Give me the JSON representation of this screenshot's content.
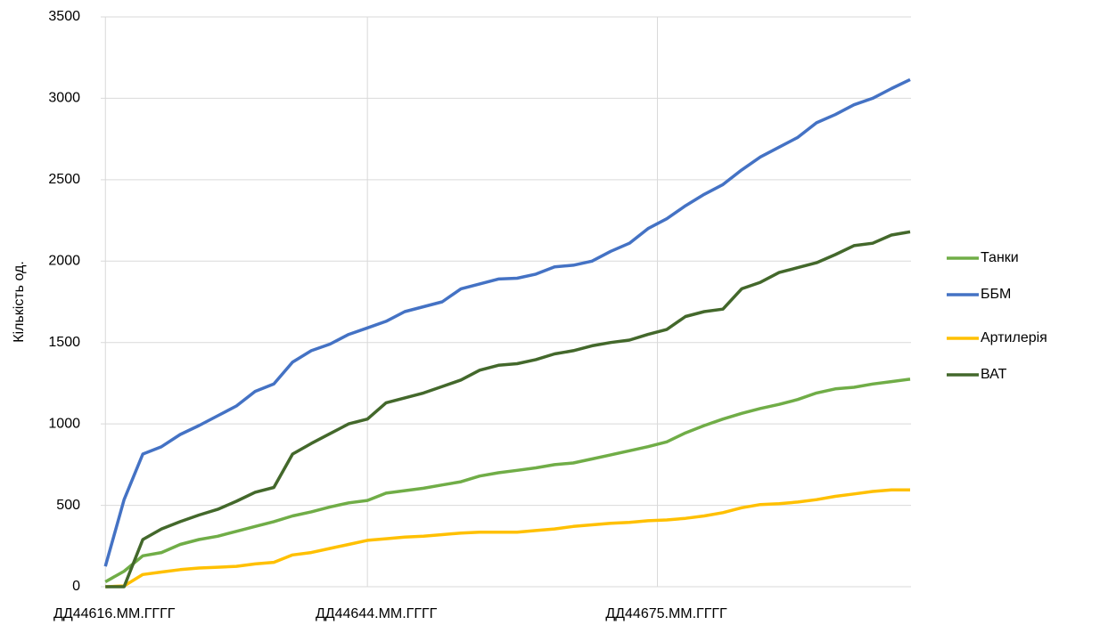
{
  "chart_data": {
    "type": "line",
    "y_label": "Кількість од.",
    "x": [
      44616,
      44618,
      44620,
      44622,
      44624,
      44626,
      44628,
      44630,
      44632,
      44634,
      44636,
      44638,
      44640,
      44642,
      44644,
      44646,
      44648,
      44650,
      44652,
      44654,
      44656,
      44658,
      44660,
      44662,
      44664,
      44666,
      44668,
      44670,
      44672,
      44674,
      44676,
      44678,
      44680,
      44682,
      44684,
      44686,
      44688,
      44690,
      44692,
      44694,
      44696,
      44698,
      44700,
      44702
    ],
    "series": [
      {
        "name": "Танки",
        "color": "#70ad47",
        "values": [
          30,
          95,
          190,
          210,
          260,
          290,
          310,
          340,
          370,
          400,
          435,
          460,
          490,
          515,
          530,
          575,
          590,
          605,
          625,
          645,
          680,
          700,
          715,
          730,
          750,
          760,
          785,
          810,
          835,
          860,
          890,
          945,
          990,
          1030,
          1065,
          1095,
          1120,
          1150,
          1190,
          1215,
          1225,
          1245,
          1260,
          1275
        ]
      },
      {
        "name": "ББМ",
        "color": "#4472c4",
        "values": [
          125,
          535,
          815,
          860,
          935,
          990,
          1050,
          1110,
          1200,
          1245,
          1380,
          1450,
          1490,
          1550,
          1590,
          1630,
          1690,
          1720,
          1750,
          1830,
          1860,
          1890,
          1895,
          1920,
          1965,
          1975,
          2000,
          2060,
          2110,
          2200,
          2260,
          2340,
          2410,
          2470,
          2560,
          2640,
          2700,
          2760,
          2850,
          2900,
          2960,
          3000,
          3060,
          3115
        ]
      },
      {
        "name": "Артилерія",
        "color": "#ffc000",
        "values": [
          0,
          5,
          75,
          90,
          105,
          115,
          120,
          125,
          140,
          150,
          195,
          210,
          235,
          260,
          285,
          295,
          305,
          310,
          320,
          330,
          335,
          335,
          335,
          345,
          355,
          370,
          380,
          390,
          395,
          405,
          410,
          420,
          435,
          455,
          485,
          505,
          510,
          520,
          535,
          555,
          570,
          585,
          595,
          595
        ]
      },
      {
        "name": "ВАТ",
        "color": "#43682b",
        "values": [
          0,
          0,
          290,
          355,
          400,
          440,
          475,
          525,
          580,
          610,
          815,
          880,
          940,
          1000,
          1030,
          1130,
          1160,
          1190,
          1230,
          1270,
          1330,
          1360,
          1370,
          1395,
          1430,
          1450,
          1480,
          1500,
          1515,
          1550,
          1580,
          1660,
          1690,
          1705,
          1830,
          1870,
          1930,
          1960,
          1990,
          2040,
          2095,
          2110,
          2160,
          2180
        ]
      }
    ],
    "xlim": [
      44615.5,
      44702.1
    ],
    "xticks": [
      {
        "value": 44616,
        "label": "ДД44616.ММ.ГГГГ"
      },
      {
        "value": 44644,
        "label": "ДД44644.ММ.ГГГГ"
      },
      {
        "value": 44675,
        "label": "ДД44675.ММ.ГГГГ"
      }
    ],
    "ylim": [
      0,
      3500
    ],
    "yticks": [
      0,
      500,
      1000,
      1500,
      2000,
      2500,
      3000,
      3500
    ],
    "grid": true,
    "legend": "right"
  }
}
